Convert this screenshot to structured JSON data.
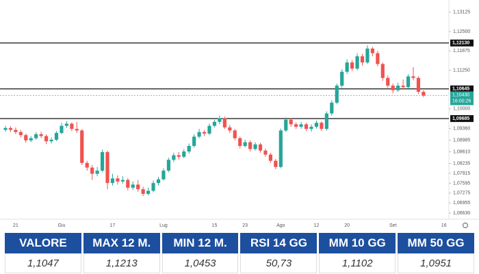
{
  "chart_data": {
    "type": "candlestick",
    "categories": [
      null,
      null,
      "21",
      null,
      null,
      null,
      null,
      null,
      null,
      null,
      null,
      "Giu",
      null,
      null,
      null,
      null,
      null,
      null,
      null,
      null,
      null,
      "17",
      null,
      null,
      null,
      null,
      null,
      null,
      null,
      null,
      null,
      "Lug",
      null,
      null,
      null,
      null,
      null,
      null,
      null,
      null,
      null,
      "15",
      null,
      null,
      null,
      null,
      null,
      "23",
      null,
      null,
      null,
      null,
      null,
      null,
      "Ago",
      null,
      null,
      null,
      null,
      null,
      null,
      "12",
      null,
      null,
      null,
      null,
      null,
      "20",
      null,
      null,
      null,
      null,
      null,
      null,
      null,
      null,
      "Set",
      null,
      null,
      null,
      null,
      null,
      null,
      null,
      null,
      null,
      "16"
    ],
    "open": [
      1.0932,
      1.0938,
      1.0932,
      1.0925,
      1.0915,
      1.0898,
      1.0905,
      1.0918,
      1.0912,
      1.0895,
      1.09,
      1.0922,
      1.0945,
      1.0952,
      1.0935,
      1.093,
      1.0825,
      1.081,
      1.079,
      1.08,
      1.086,
      1.076,
      1.0775,
      1.0765,
      1.077,
      1.0745,
      1.0755,
      1.074,
      1.0725,
      1.0735,
      1.076,
      1.0772,
      1.08,
      1.0835,
      1.085,
      1.0845,
      1.0862,
      1.088,
      1.091,
      1.0925,
      1.092,
      1.0945,
      1.0958,
      1.097,
      1.094,
      1.093,
      1.0905,
      1.088,
      1.0892,
      1.087,
      1.0885,
      1.0865,
      1.0852,
      1.0832,
      1.0812,
      1.093,
      1.0965,
      1.095,
      1.0942,
      1.095,
      1.0935,
      1.0942,
      1.0955,
      1.0935,
      1.0985,
      1.102,
      1.1075,
      1.112,
      1.115,
      1.113,
      1.117,
      1.115,
      1.1195,
      1.118,
      1.1145,
      1.11,
      1.1075,
      1.106,
      1.1075,
      1.107,
      1.1105,
      1.11,
      1.1055,
      null,
      null,
      null,
      null
    ],
    "high": [
      1.0945,
      1.0944,
      1.094,
      1.0932,
      1.092,
      1.0912,
      1.0925,
      1.0926,
      1.0918,
      1.0908,
      1.0928,
      1.0955,
      1.096,
      1.0956,
      1.0958,
      1.0935,
      1.0832,
      1.0818,
      1.0812,
      1.0868,
      1.0865,
      1.079,
      1.0785,
      1.0782,
      1.0776,
      1.0765,
      1.077,
      1.0748,
      1.0745,
      1.0768,
      1.078,
      1.0808,
      1.0842,
      1.0858,
      1.086,
      1.087,
      1.0888,
      1.0918,
      1.0935,
      1.0932,
      1.0952,
      1.0965,
      1.0978,
      1.0975,
      1.0948,
      1.0935,
      1.091,
      1.09,
      1.0898,
      1.0892,
      1.089,
      1.0872,
      1.0858,
      1.0838,
      1.0936,
      1.0972,
      1.097,
      1.0956,
      1.0958,
      1.0955,
      1.095,
      1.0962,
      1.096,
      1.0992,
      1.1028,
      1.1082,
      1.1128,
      1.116,
      1.1158,
      1.118,
      1.1178,
      1.1205,
      1.12,
      1.1188,
      1.115,
      1.1108,
      1.1082,
      1.1085,
      1.1095,
      1.1112,
      1.1135,
      1.1105,
      1.106,
      null,
      null,
      null,
      null
    ],
    "low": [
      1.0926,
      1.0925,
      1.0918,
      1.0908,
      1.089,
      1.0892,
      1.09,
      1.0905,
      1.0886,
      1.0888,
      1.0896,
      1.0918,
      1.0938,
      1.0928,
      1.0922,
      1.0818,
      1.08,
      1.077,
      1.0782,
      1.0795,
      1.074,
      1.0752,
      1.0755,
      1.0758,
      1.0736,
      1.0738,
      1.0732,
      1.0718,
      1.072,
      1.073,
      1.0752,
      1.0768,
      1.0795,
      1.0828,
      1.0836,
      1.084,
      1.0855,
      1.0875,
      1.0905,
      1.0912,
      1.0915,
      1.094,
      1.095,
      1.0935,
      1.0922,
      1.0898,
      1.0872,
      1.0875,
      1.0862,
      1.0865,
      1.0858,
      1.0845,
      1.0825,
      1.0805,
      1.0808,
      1.0925,
      1.0942,
      1.0935,
      1.0936,
      1.0928,
      1.0926,
      1.0936,
      1.0928,
      1.093,
      1.0978,
      1.1015,
      1.1068,
      1.1112,
      1.1122,
      1.1125,
      1.114,
      1.1145,
      1.117,
      1.1138,
      1.109,
      1.1068,
      1.105,
      1.1055,
      1.1062,
      1.1065,
      1.1092,
      1.1048,
      1.1038,
      null,
      null,
      null,
      null
    ],
    "close": [
      1.0938,
      1.0932,
      1.0925,
      1.0915,
      1.0898,
      1.0905,
      1.0918,
      1.0912,
      1.0895,
      1.09,
      1.0922,
      1.0945,
      1.0952,
      1.0935,
      1.093,
      1.0825,
      1.081,
      1.079,
      1.08,
      1.086,
      1.076,
      1.0775,
      1.0765,
      1.077,
      1.0745,
      1.0755,
      1.074,
      1.0725,
      1.0735,
      1.076,
      1.0772,
      1.08,
      1.0835,
      1.085,
      1.0845,
      1.0862,
      1.088,
      1.091,
      1.0925,
      1.092,
      1.0945,
      1.0958,
      1.097,
      1.094,
      1.093,
      1.0905,
      1.088,
      1.0892,
      1.087,
      1.0885,
      1.0865,
      1.0852,
      1.0832,
      1.0812,
      1.093,
      1.0965,
      1.095,
      1.0942,
      1.095,
      1.0935,
      1.0942,
      1.0955,
      1.0935,
      1.0985,
      1.102,
      1.1075,
      1.112,
      1.115,
      1.113,
      1.117,
      1.115,
      1.1195,
      1.118,
      1.1145,
      1.11,
      1.1075,
      1.106,
      1.1075,
      1.107,
      1.1105,
      1.11,
      1.1055,
      1.1043,
      null,
      null,
      null,
      null
    ],
    "up_color": "#26a69a",
    "down_color": "#ef5350",
    "ylim": [
      1.0643,
      1.1341
    ],
    "yticks": [
      {
        "value": 1.0663,
        "label": "1,06630"
      },
      {
        "value": 1.06955,
        "label": "1,06955"
      },
      {
        "value": 1.07275,
        "label": "1,07275"
      },
      {
        "value": 1.07595,
        "label": "1,07595"
      },
      {
        "value": 1.07915,
        "label": "1,07915"
      },
      {
        "value": 1.08235,
        "label": "1,08235"
      },
      {
        "value": 1.0861,
        "label": "1,08610"
      },
      {
        "value": 1.08985,
        "label": "1,08985"
      },
      {
        "value": 1.0936,
        "label": "1,09360"
      },
      {
        "value": 1.1,
        "label": "1,10000"
      },
      {
        "value": 1.1125,
        "label": "1,11250"
      },
      {
        "value": 1.11875,
        "label": "1,11875"
      },
      {
        "value": 1.125,
        "label": "1,12500"
      },
      {
        "value": 1.13125,
        "label": "1,13125"
      }
    ],
    "levels": [
      {
        "value": 1.1213,
        "label": "1,12130"
      },
      {
        "value": 1.10645,
        "label": "1,10645"
      },
      {
        "value": 1.09685,
        "label": "1,09685"
      }
    ],
    "last_price": {
      "value": 1.1043,
      "label": "1,10430",
      "countdown": "16:00:26"
    }
  },
  "table": {
    "headers": [
      "VALORE",
      "MAX 12 M.",
      "MIN 12 M.",
      "RSI 14 GG",
      "MM 10 GG",
      "MM 50 GG"
    ],
    "values": [
      "1,1047",
      "1,1213",
      "1,0453",
      "50,73",
      "1,1102",
      "1,0951"
    ]
  }
}
